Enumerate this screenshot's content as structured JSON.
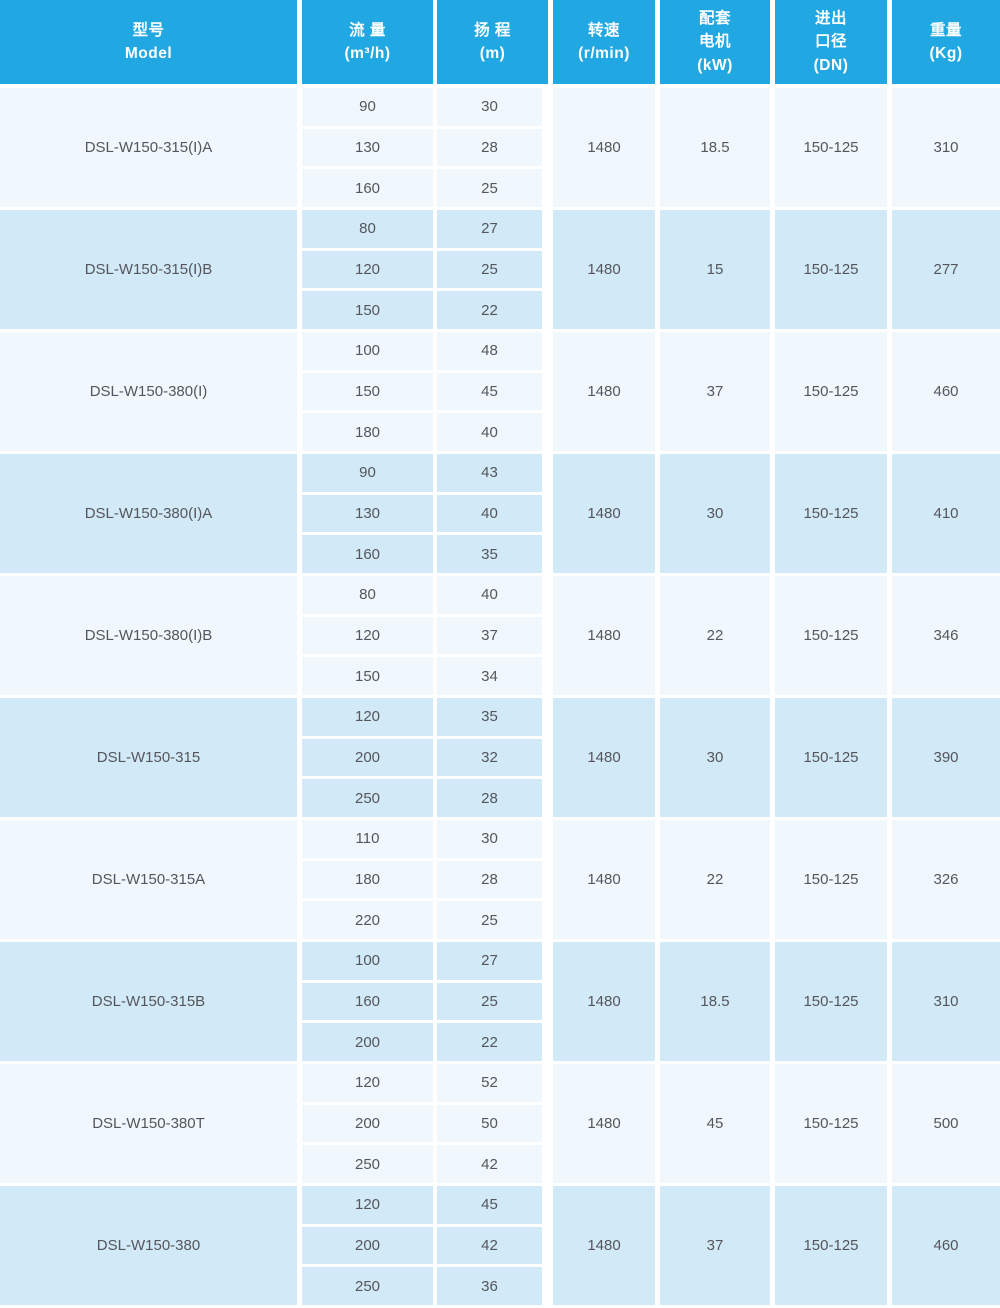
{
  "table": {
    "colors": {
      "header_bg": "#21A7E2",
      "row_light_bg": "#F0F8FD",
      "row_dark_bg": "#D2E9F7",
      "body_text": "#54565B",
      "header_text": "#FFFFFF",
      "gutter": "#FFFFFF"
    },
    "header": {
      "model": {
        "label": "型号\nModel"
      },
      "flow": {
        "label": "流 量\n(m³/h)"
      },
      "head": {
        "label": "扬 程\n(m)"
      },
      "speed": {
        "label": "转速\n(r/min)"
      },
      "motor": {
        "label": "配套\n电机\n(kW)"
      },
      "dn": {
        "label": "进出\n口径\n(DN)"
      },
      "weight": {
        "label": "重量\n(Kg)"
      }
    },
    "rows": [
      {
        "model": "DSL-W150-315(I)A",
        "flow": [
          "90",
          "130",
          "160"
        ],
        "head": [
          "30",
          "28",
          "25"
        ],
        "speed": "1480",
        "motor": "18.5",
        "dn": "150-125",
        "weight": "310"
      },
      {
        "model": "DSL-W150-315(I)B",
        "flow": [
          "80",
          "120",
          "150"
        ],
        "head": [
          "27",
          "25",
          "22"
        ],
        "speed": "1480",
        "motor": "15",
        "dn": "150-125",
        "weight": "277"
      },
      {
        "model": "DSL-W150-380(I)",
        "flow": [
          "100",
          "150",
          "180"
        ],
        "head": [
          "48",
          "45",
          "40"
        ],
        "speed": "1480",
        "motor": "37",
        "dn": "150-125",
        "weight": "460"
      },
      {
        "model": "DSL-W150-380(I)A",
        "flow": [
          "90",
          "130",
          "160"
        ],
        "head": [
          "43",
          "40",
          "35"
        ],
        "speed": "1480",
        "motor": "30",
        "dn": "150-125",
        "weight": "410"
      },
      {
        "model": "DSL-W150-380(I)B",
        "flow": [
          "80",
          "120",
          "150"
        ],
        "head": [
          "40",
          "37",
          "34"
        ],
        "speed": "1480",
        "motor": "22",
        "dn": "150-125",
        "weight": "346"
      },
      {
        "model": "DSL-W150-315",
        "flow": [
          "120",
          "200",
          "250"
        ],
        "head": [
          "35",
          "32",
          "28"
        ],
        "speed": "1480",
        "motor": "30",
        "dn": "150-125",
        "weight": "390"
      },
      {
        "model": "DSL-W150-315A",
        "flow": [
          "110",
          "180",
          "220"
        ],
        "head": [
          "30",
          "28",
          "25"
        ],
        "speed": "1480",
        "motor": "22",
        "dn": "150-125",
        "weight": "326"
      },
      {
        "model": "DSL-W150-315B",
        "flow": [
          "100",
          "160",
          "200"
        ],
        "head": [
          "27",
          "25",
          "22"
        ],
        "speed": "1480",
        "motor": "18.5",
        "dn": "150-125",
        "weight": "310"
      },
      {
        "model": "DSL-W150-380T",
        "flow": [
          "120",
          "200",
          "250"
        ],
        "head": [
          "52",
          "50",
          "42"
        ],
        "speed": "1480",
        "motor": "45",
        "dn": "150-125",
        "weight": "500"
      },
      {
        "model": "DSL-W150-380",
        "flow": [
          "120",
          "200",
          "250"
        ],
        "head": [
          "45",
          "42",
          "36"
        ],
        "speed": "1480",
        "motor": "37",
        "dn": "150-125",
        "weight": "460"
      }
    ]
  }
}
